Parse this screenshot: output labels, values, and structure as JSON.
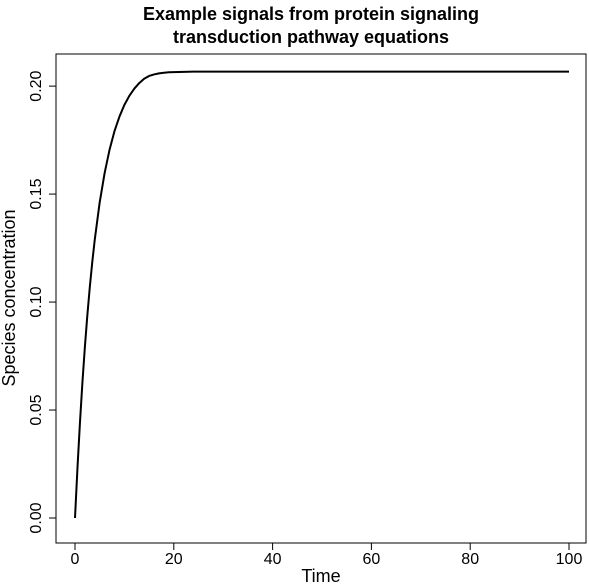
{
  "chart_data": {
    "type": "line",
    "title_lines": [
      "Example signals from protein signaling",
      "transduction pathway equations"
    ],
    "xlabel": "Time",
    "ylabel": "Species concentration",
    "xlim": [
      0,
      100
    ],
    "ylim": [
      0,
      0.207
    ],
    "x_ticks": [
      0,
      20,
      40,
      60,
      80,
      100
    ],
    "x_tick_labels": [
      "0",
      "20",
      "40",
      "60",
      "80",
      "100"
    ],
    "y_ticks": [
      0,
      0.05,
      0.1,
      0.15,
      0.2
    ],
    "y_tick_labels": [
      "0.00",
      "0.05",
      "0.10",
      "0.15",
      "0.20"
    ],
    "grid": false,
    "legend": "none",
    "series": [
      {
        "color": "#000000",
        "x": [
          0,
          0.5,
          1,
          1.5,
          2,
          2.5,
          3,
          3.5,
          4,
          5,
          6,
          7,
          8,
          9,
          10,
          11,
          12,
          13,
          14,
          15,
          16,
          17,
          18,
          19,
          20,
          22,
          24,
          26,
          28,
          30,
          35,
          40,
          50,
          60,
          70,
          80,
          90,
          100
        ],
        "y": [
          0.0,
          0.0232,
          0.0441,
          0.0627,
          0.0792,
          0.0939,
          0.107,
          0.1186,
          0.1289,
          0.1462,
          0.1598,
          0.1706,
          0.1792,
          0.1859,
          0.1913,
          0.1955,
          0.1988,
          0.2014,
          0.2034,
          0.2047,
          0.2054,
          0.2059,
          0.2062,
          0.2064,
          0.2065,
          0.2066,
          0.2067,
          0.2067,
          0.2067,
          0.2067,
          0.2067,
          0.2067,
          0.2067,
          0.2067,
          0.2067,
          0.2067,
          0.2067,
          0.2067
        ]
      }
    ]
  }
}
